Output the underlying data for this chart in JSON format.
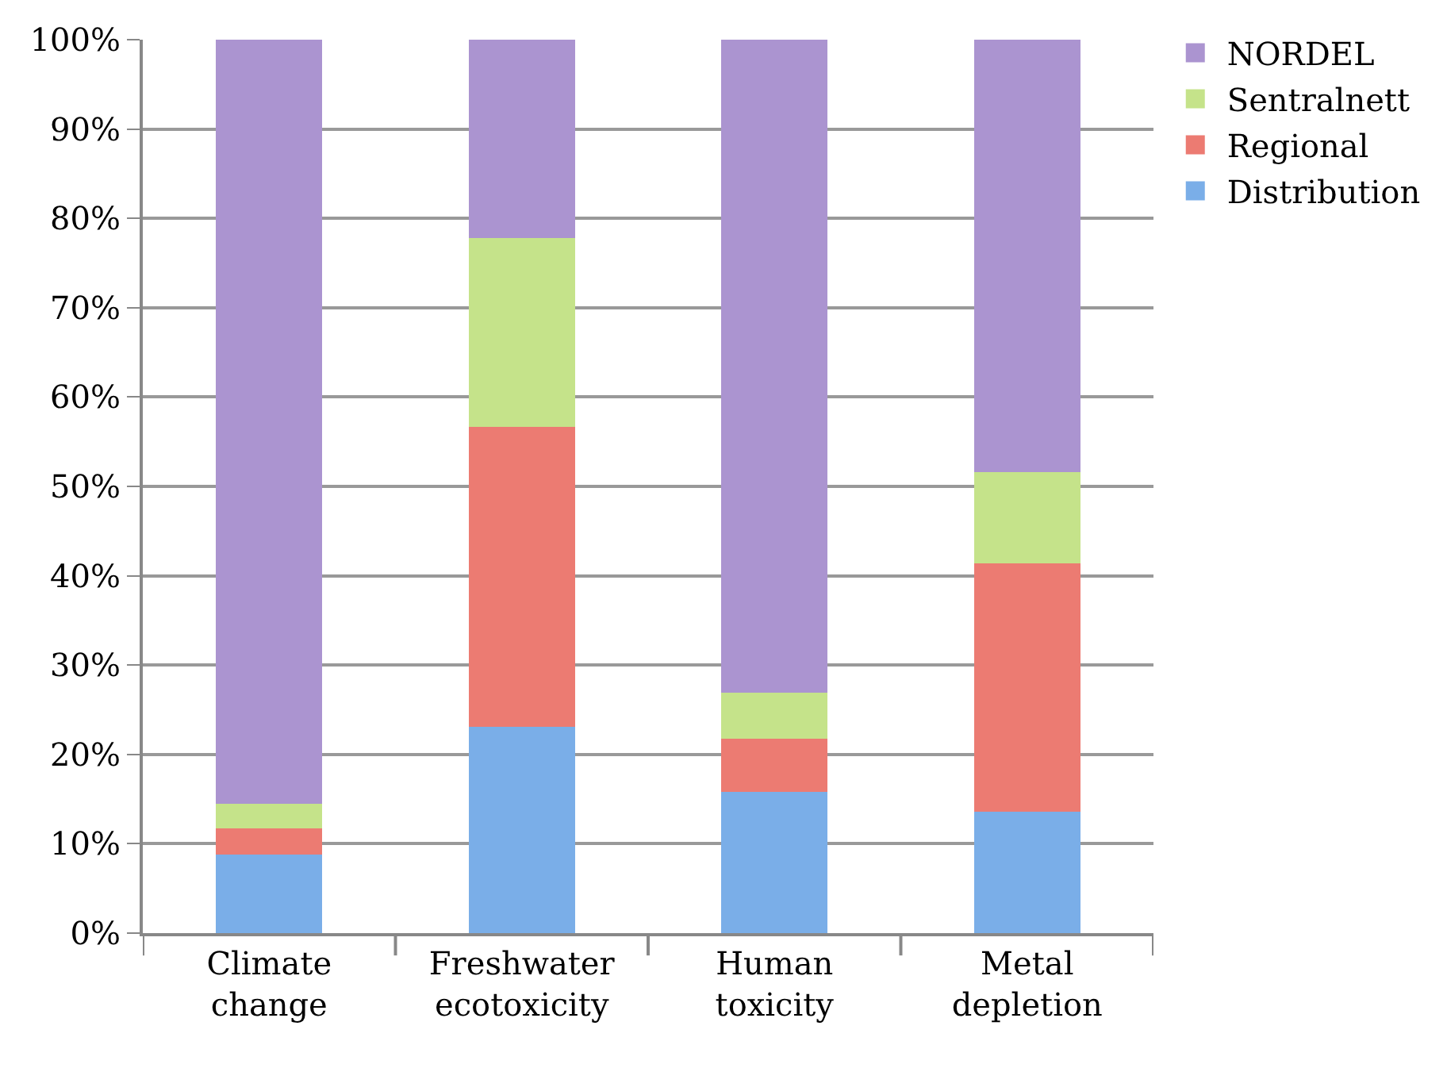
{
  "chart_data": {
    "type": "bar",
    "stacked": true,
    "categories": [
      "Climate\nchange",
      "Freshwater\necotoxicity",
      "Human\ntoxicity",
      "Metal\ndepletion"
    ],
    "series": [
      {
        "name": "Distribution",
        "color": "#7aaee8",
        "values": [
          8.8,
          23.1,
          15.8,
          13.6
        ]
      },
      {
        "name": "Regional",
        "color": "#ec7b72",
        "values": [
          2.9,
          33.6,
          6.0,
          27.8
        ]
      },
      {
        "name": "Sentralnett",
        "color": "#c5e38a",
        "values": [
          2.8,
          21.1,
          5.1,
          10.2
        ]
      },
      {
        "name": "NORDEL",
        "color": "#ab94d0",
        "values": [
          85.5,
          22.2,
          73.1,
          48.4
        ]
      }
    ],
    "ylim": [
      0,
      100
    ],
    "yticks": [
      {
        "value": 0,
        "label": "0%"
      },
      {
        "value": 10,
        "label": "10%"
      },
      {
        "value": 20,
        "label": "20%"
      },
      {
        "value": 30,
        "label": "30%"
      },
      {
        "value": 40,
        "label": "40%"
      },
      {
        "value": 50,
        "label": "50%"
      },
      {
        "value": 60,
        "label": "60%"
      },
      {
        "value": 70,
        "label": "70%"
      },
      {
        "value": 80,
        "label": "80%"
      },
      {
        "value": 90,
        "label": "90%"
      },
      {
        "value": 100,
        "label": "100%"
      }
    ],
    "grid": "y",
    "legend": "top right"
  }
}
